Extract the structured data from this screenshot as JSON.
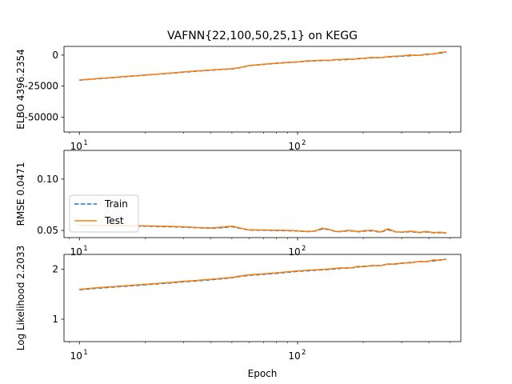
{
  "colors": {
    "train": "#1f77b4",
    "test": "#ff7f0e",
    "axis": "#000000"
  },
  "chart_data": {
    "title": "VAFNN{22,100,50,25,1} on KEGG",
    "xlabel": "Epoch",
    "xscale": "log",
    "xlim": [
      8.5,
      560
    ],
    "xticks": [
      {
        "base": "10",
        "exp": "1",
        "value": 10
      },
      {
        "base": "10",
        "exp": "2",
        "value": 100
      }
    ],
    "legend": {
      "placement": "center-left",
      "subplot": 1,
      "entries": [
        "Train",
        "Test"
      ]
    },
    "subplots": [
      {
        "type": "line",
        "ylabel": "ELBO 4396.2354",
        "ylim": [
          -62000,
          7000
        ],
        "yticks": [
          "-50000",
          "-25000",
          "0"
        ],
        "ytick_values": [
          -50000,
          -25000,
          0
        ],
        "x": [
          10,
          12,
          15,
          20,
          25,
          30,
          35,
          40,
          45,
          50,
          55,
          60,
          70,
          80,
          90,
          100,
          110,
          120,
          130,
          140,
          150,
          160,
          170,
          180,
          190,
          200,
          220,
          240,
          260,
          280,
          300,
          330,
          360,
          390,
          420,
          450,
          480
        ],
        "series": [
          {
            "name": "Train",
            "style": "dashed",
            "values": [
              -20300,
              -19200,
              -17900,
              -16200,
              -14900,
              -13800,
              -12900,
              -12200,
              -11600,
              -11200,
              -10000,
              -8600,
              -7500,
              -6700,
              -6100,
              -5600,
              -5000,
              -4700,
              -4400,
              -4200,
              -3900,
              -3800,
              -3600,
              -3300,
              -3000,
              -2700,
              -2200,
              -1900,
              -1500,
              -1200,
              -900,
              -500,
              -100,
              300,
              1000,
              1600,
              2200
            ]
          },
          {
            "name": "Test",
            "style": "solid",
            "values": [
              -20100,
              -19000,
              -17700,
              -16000,
              -14700,
              -13600,
              -12700,
              -12000,
              -11400,
              -11000,
              -9800,
              -8400,
              -7300,
              -6500,
              -5900,
              -5400,
              -4700,
              -4500,
              -4100,
              -4400,
              -3600,
              -3500,
              -3200,
              -3400,
              -2600,
              -2500,
              -1900,
              -2100,
              -1200,
              -900,
              -700,
              100,
              -200,
              800,
              900,
              2100,
              2700
            ]
          }
        ]
      },
      {
        "type": "line",
        "ylabel": "RMSE 0.0471",
        "ylim": [
          0.043,
          0.128
        ],
        "yticks": [
          "0.05",
          "0.10"
        ],
        "ytick_values": [
          0.05,
          0.1
        ],
        "x": [
          10,
          12,
          15,
          20,
          25,
          30,
          35,
          40,
          45,
          50,
          55,
          60,
          70,
          80,
          90,
          100,
          110,
          120,
          130,
          140,
          150,
          160,
          170,
          180,
          190,
          200,
          220,
          240,
          260,
          280,
          300,
          330,
          360,
          390,
          420,
          450,
          480
        ],
        "series": [
          {
            "name": "Train",
            "style": "dashed",
            "values": [
              0.0548,
              0.0546,
              0.0544,
              0.0541,
              0.0537,
              0.0531,
              0.0525,
              0.0521,
              0.0526,
              0.0536,
              0.0518,
              0.0503,
              0.0501,
              0.0499,
              0.0497,
              0.0494,
              0.0488,
              0.0492,
              0.0515,
              0.0507,
              0.0487,
              0.0489,
              0.0496,
              0.0493,
              0.0487,
              0.0492,
              0.0496,
              0.0483,
              0.0507,
              0.0486,
              0.0482,
              0.0488,
              0.0479,
              0.0485,
              0.0477,
              0.0478,
              0.0473
            ]
          },
          {
            "name": "Test",
            "style": "solid",
            "values": [
              0.0552,
              0.055,
              0.0548,
              0.0545,
              0.0541,
              0.0535,
              0.0528,
              0.0524,
              0.0532,
              0.0542,
              0.0522,
              0.0506,
              0.0504,
              0.0502,
              0.05,
              0.0497,
              0.049,
              0.0495,
              0.0522,
              0.051,
              0.0489,
              0.0492,
              0.0501,
              0.0496,
              0.0489,
              0.0497,
              0.0502,
              0.0485,
              0.0516,
              0.0488,
              0.0484,
              0.0493,
              0.0481,
              0.049,
              0.0479,
              0.0482,
              0.0476
            ]
          }
        ]
      },
      {
        "type": "line",
        "ylabel": "Log Likelihood 2.2033",
        "ylim": [
          0.55,
          2.3
        ],
        "yticks": [
          "1",
          "2"
        ],
        "ytick_values": [
          1,
          2
        ],
        "x": [
          10,
          12,
          15,
          20,
          25,
          30,
          35,
          40,
          45,
          50,
          55,
          60,
          70,
          80,
          90,
          100,
          110,
          120,
          130,
          140,
          150,
          160,
          170,
          180,
          190,
          200,
          220,
          240,
          260,
          280,
          300,
          330,
          360,
          390,
          420,
          450,
          480
        ],
        "series": [
          {
            "name": "Train",
            "style": "dashed",
            "values": [
              1.59,
              1.62,
              1.65,
              1.69,
              1.72,
              1.75,
              1.77,
              1.79,
              1.81,
              1.83,
              1.86,
              1.88,
              1.9,
              1.92,
              1.94,
              1.96,
              1.97,
              1.98,
              1.99,
              2.0,
              2.01,
              2.02,
              2.03,
              2.03,
              2.05,
              2.06,
              2.07,
              2.08,
              2.1,
              2.11,
              2.12,
              2.14,
              2.15,
              2.16,
              2.17,
              2.19,
              2.2
            ]
          },
          {
            "name": "Test",
            "style": "solid",
            "values": [
              1.6,
              1.63,
              1.66,
              1.7,
              1.73,
              1.76,
              1.78,
              1.8,
              1.82,
              1.84,
              1.87,
              1.89,
              1.91,
              1.93,
              1.95,
              1.97,
              1.98,
              1.99,
              2.0,
              2.01,
              2.02,
              2.03,
              2.02,
              2.04,
              2.06,
              2.05,
              2.08,
              2.07,
              2.11,
              2.1,
              2.13,
              2.13,
              2.16,
              2.15,
              2.19,
              2.18,
              2.21
            ]
          }
        ]
      }
    ]
  }
}
